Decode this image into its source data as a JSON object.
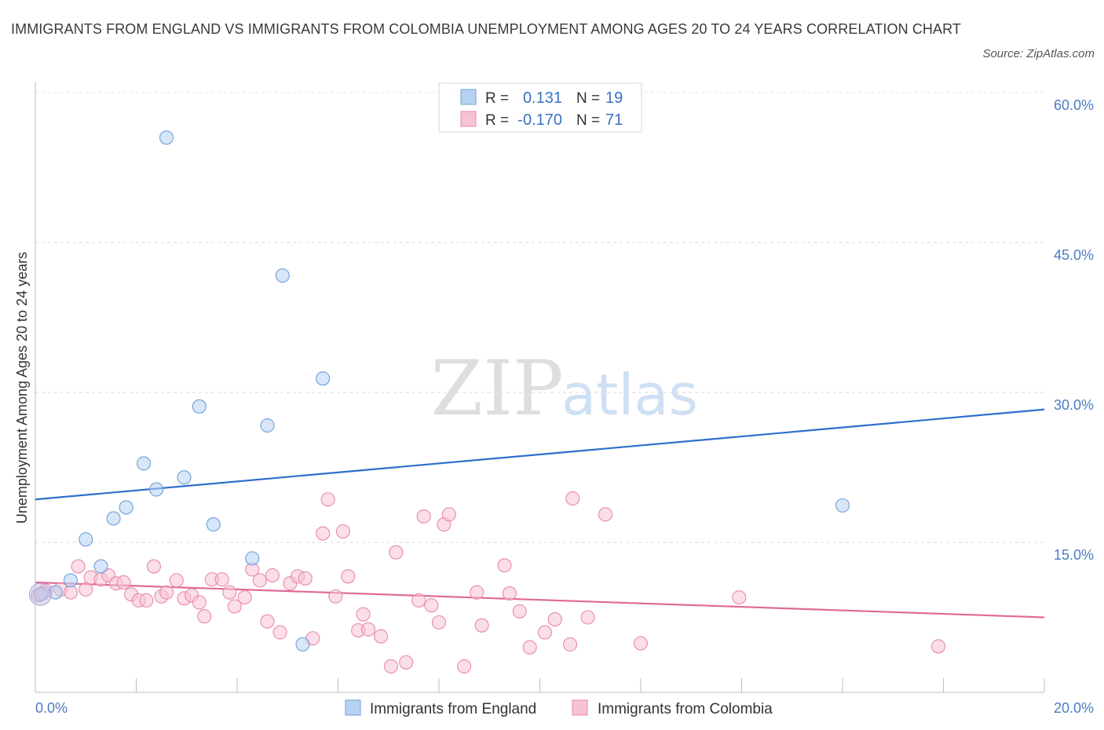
{
  "title": "IMMIGRANTS FROM ENGLAND VS IMMIGRANTS FROM COLOMBIA UNEMPLOYMENT AMONG AGES 20 TO 24 YEARS CORRELATION CHART",
  "source": "Source: ZipAtlas.com",
  "watermark": {
    "zip": "ZIP",
    "atlas": "atlas"
  },
  "legend_stats": [
    {
      "r_label": "R =",
      "r_value": "0.131",
      "n_label": "N =",
      "n_value": "19",
      "color": "#b7d1f3"
    },
    {
      "r_label": "R =",
      "r_value": "-0.170",
      "n_label": "N =",
      "n_value": "71",
      "color": "#f7c3d3"
    }
  ],
  "chart_data": {
    "type": "scatter",
    "title": "IMMIGRANTS FROM ENGLAND VS IMMIGRANTS FROM COLOMBIA UNEMPLOYMENT AMONG AGES 20 TO 24 YEARS CORRELATION CHART",
    "xlabel": "",
    "ylabel": "Unemployment Among Ages 20 to 24 years",
    "xlim": [
      0,
      20
    ],
    "ylim": [
      0,
      60
    ],
    "x_tick_labels": [
      "0.0%",
      "20.0%"
    ],
    "y_ticks": [
      15,
      30,
      45,
      60
    ],
    "y_tick_labels": [
      "15.0%",
      "30.0%",
      "45.0%",
      "60.0%"
    ],
    "grid": true,
    "legend_position": "bottom",
    "series": [
      {
        "name": "Immigrants from England",
        "color": "#b7d1f3",
        "stroke": "#6f9fd8",
        "line_color": "#2f6fcc",
        "trend": [
          [
            0,
            19.3
          ],
          [
            20,
            28.3
          ]
        ],
        "points": [
          [
            0.1,
            9.8
          ],
          [
            0.4,
            10.0
          ],
          [
            0.7,
            11.2
          ],
          [
            1.0,
            15.3
          ],
          [
            1.3,
            12.6
          ],
          [
            1.55,
            17.4
          ],
          [
            1.8,
            18.5
          ],
          [
            2.15,
            22.9
          ],
          [
            2.4,
            20.3
          ],
          [
            2.6,
            55.5
          ],
          [
            2.95,
            21.5
          ],
          [
            3.25,
            28.6
          ],
          [
            3.53,
            16.8
          ],
          [
            4.3,
            13.4
          ],
          [
            4.6,
            26.7
          ],
          [
            4.9,
            41.7
          ],
          [
            5.3,
            4.8
          ],
          [
            5.7,
            31.4
          ],
          [
            16.0,
            18.7
          ]
        ]
      },
      {
        "name": "Immigrants from Colombia",
        "color": "#f7c3d3",
        "stroke": "#e78aa8",
        "line_color": "#e0699a",
        "trend": [
          [
            0,
            11.0
          ],
          [
            20,
            7.5
          ]
        ],
        "points": [
          [
            0.05,
            9.7
          ],
          [
            0.2,
            10.2
          ],
          [
            0.5,
            10.3
          ],
          [
            0.7,
            10.0
          ],
          [
            0.85,
            12.6
          ],
          [
            1.0,
            10.3
          ],
          [
            1.1,
            11.5
          ],
          [
            1.3,
            11.3
          ],
          [
            1.45,
            11.7
          ],
          [
            1.6,
            10.9
          ],
          [
            1.75,
            11.0
          ],
          [
            1.9,
            9.8
          ],
          [
            2.05,
            9.2
          ],
          [
            2.2,
            9.2
          ],
          [
            2.35,
            12.6
          ],
          [
            2.5,
            9.6
          ],
          [
            2.6,
            10.0
          ],
          [
            2.8,
            11.2
          ],
          [
            2.95,
            9.4
          ],
          [
            3.1,
            9.7
          ],
          [
            3.25,
            9.0
          ],
          [
            3.35,
            7.6
          ],
          [
            3.5,
            11.3
          ],
          [
            3.7,
            11.3
          ],
          [
            3.85,
            10.0
          ],
          [
            3.95,
            8.6
          ],
          [
            4.15,
            9.5
          ],
          [
            4.3,
            12.3
          ],
          [
            4.45,
            11.2
          ],
          [
            4.6,
            7.1
          ],
          [
            4.7,
            11.7
          ],
          [
            4.85,
            6.0
          ],
          [
            5.05,
            10.9
          ],
          [
            5.2,
            11.6
          ],
          [
            5.35,
            11.4
          ],
          [
            5.5,
            5.4
          ],
          [
            5.7,
            15.9
          ],
          [
            5.8,
            19.3
          ],
          [
            5.95,
            9.6
          ],
          [
            6.1,
            16.1
          ],
          [
            6.2,
            11.6
          ],
          [
            6.4,
            6.2
          ],
          [
            6.5,
            7.8
          ],
          [
            6.6,
            6.3
          ],
          [
            6.85,
            5.6
          ],
          [
            7.05,
            2.6
          ],
          [
            7.15,
            14.0
          ],
          [
            7.35,
            3.0
          ],
          [
            7.6,
            9.2
          ],
          [
            7.7,
            17.6
          ],
          [
            7.85,
            8.7
          ],
          [
            8.0,
            7.0
          ],
          [
            8.1,
            16.8
          ],
          [
            8.2,
            17.8
          ],
          [
            8.5,
            2.6
          ],
          [
            8.75,
            10.0
          ],
          [
            8.85,
            6.7
          ],
          [
            9.3,
            12.7
          ],
          [
            9.4,
            9.9
          ],
          [
            9.6,
            8.1
          ],
          [
            9.8,
            4.5
          ],
          [
            10.1,
            6.0
          ],
          [
            10.3,
            7.3
          ],
          [
            10.6,
            4.8
          ],
          [
            10.65,
            19.4
          ],
          [
            10.95,
            7.5
          ],
          [
            11.3,
            17.8
          ],
          [
            12.0,
            4.9
          ],
          [
            13.95,
            9.5
          ],
          [
            17.9,
            4.6
          ],
          [
            0.15,
            9.9
          ]
        ]
      }
    ]
  }
}
